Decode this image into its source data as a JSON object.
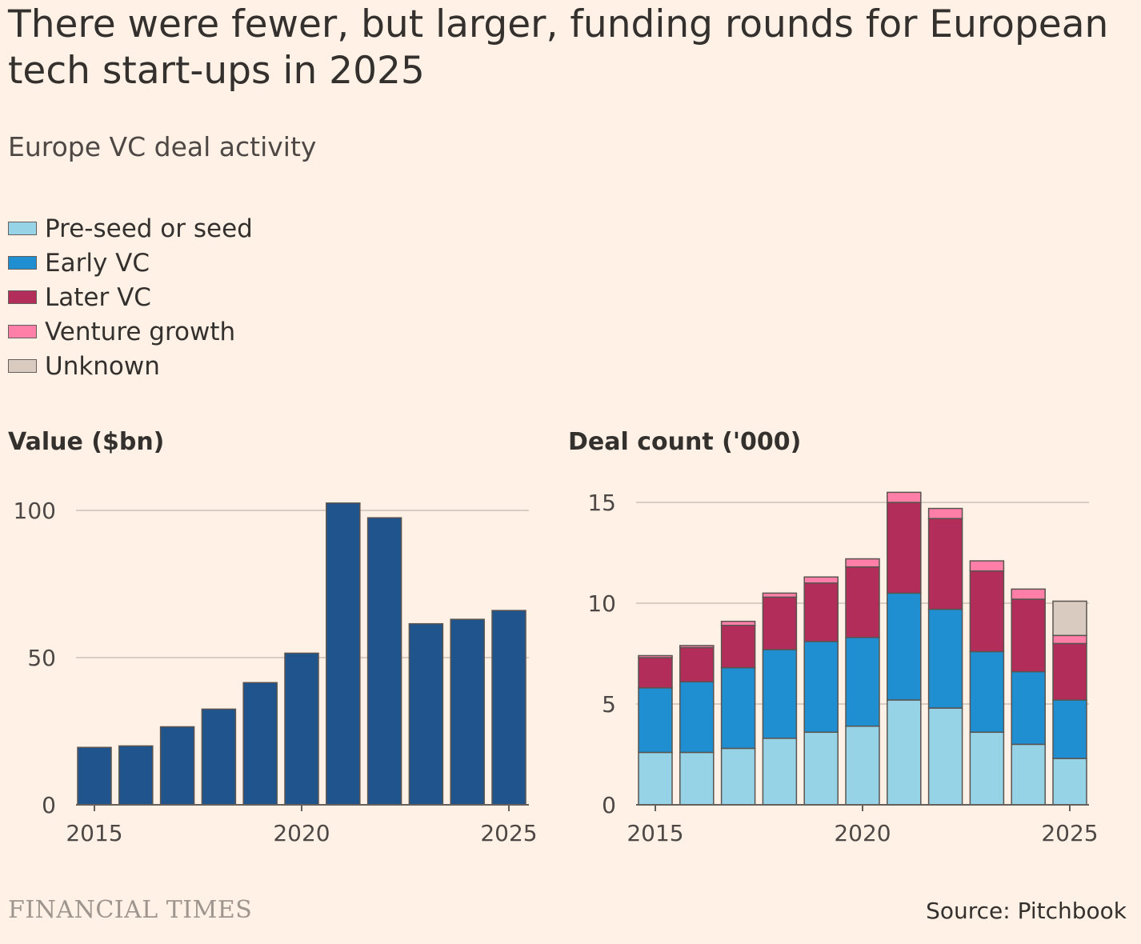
{
  "title": "There were fewer, but larger, funding rounds for European tech start-ups in 2025",
  "subtitle": "Europe VC deal activity",
  "legend": [
    {
      "label": "Pre-seed or seed",
      "color": "#96d3e6"
    },
    {
      "label": "Early VC",
      "color": "#1f8fd1"
    },
    {
      "label": "Later VC",
      "color": "#b22d5a"
    },
    {
      "label": "Venture growth",
      "color": "#ff7fa8"
    },
    {
      "label": "Unknown",
      "color": "#d9cbc0"
    }
  ],
  "footer": {
    "logo": "FINANCIAL TIMES",
    "source": "Source: Pitchbook"
  },
  "chart_data": [
    {
      "type": "bar",
      "title": "Value ($bn)",
      "categories": [
        "2015",
        "2016",
        "2017",
        "2018",
        "2019",
        "2020",
        "2021",
        "2022",
        "2023",
        "2024",
        "2025"
      ],
      "values": [
        19.5,
        20,
        26.5,
        32.5,
        41.5,
        51.5,
        102.5,
        97.5,
        61.5,
        63,
        66
      ],
      "color": "#1f548d",
      "ylim": [
        0,
        100
      ],
      "yticks": [
        "0",
        "50",
        "100"
      ],
      "xticks": [
        "2015",
        "2020",
        "2025"
      ]
    },
    {
      "type": "bar",
      "stacked": true,
      "title": "Deal count ('000)",
      "categories": [
        "2015",
        "2016",
        "2017",
        "2018",
        "2019",
        "2020",
        "2021",
        "2022",
        "2023",
        "2024",
        "2025"
      ],
      "series": [
        {
          "name": "Pre-seed or seed",
          "color": "#96d3e6",
          "values": [
            2.6,
            2.6,
            2.8,
            3.3,
            3.6,
            3.9,
            5.2,
            4.8,
            3.6,
            3.0,
            2.3
          ]
        },
        {
          "name": "Early VC",
          "color": "#1f8fd1",
          "values": [
            3.2,
            3.5,
            4.0,
            4.4,
            4.5,
            4.4,
            5.3,
            4.9,
            4.0,
            3.6,
            2.9
          ]
        },
        {
          "name": "Later VC",
          "color": "#b22d5a",
          "values": [
            1.5,
            1.7,
            2.1,
            2.6,
            2.9,
            3.5,
            4.5,
            4.5,
            4.0,
            3.6,
            2.8
          ]
        },
        {
          "name": "Venture growth",
          "color": "#ff7fa8",
          "values": [
            0.1,
            0.1,
            0.2,
            0.2,
            0.3,
            0.4,
            0.5,
            0.5,
            0.5,
            0.5,
            0.4
          ]
        },
        {
          "name": "Unknown",
          "color": "#d9cbc0",
          "values": [
            0,
            0,
            0,
            0,
            0,
            0,
            0,
            0,
            0,
            0,
            1.7
          ]
        }
      ],
      "ylim": [
        0,
        15
      ],
      "yticks": [
        "0",
        "5",
        "10",
        "15"
      ],
      "xticks": [
        "2015",
        "2020",
        "2025"
      ]
    }
  ]
}
